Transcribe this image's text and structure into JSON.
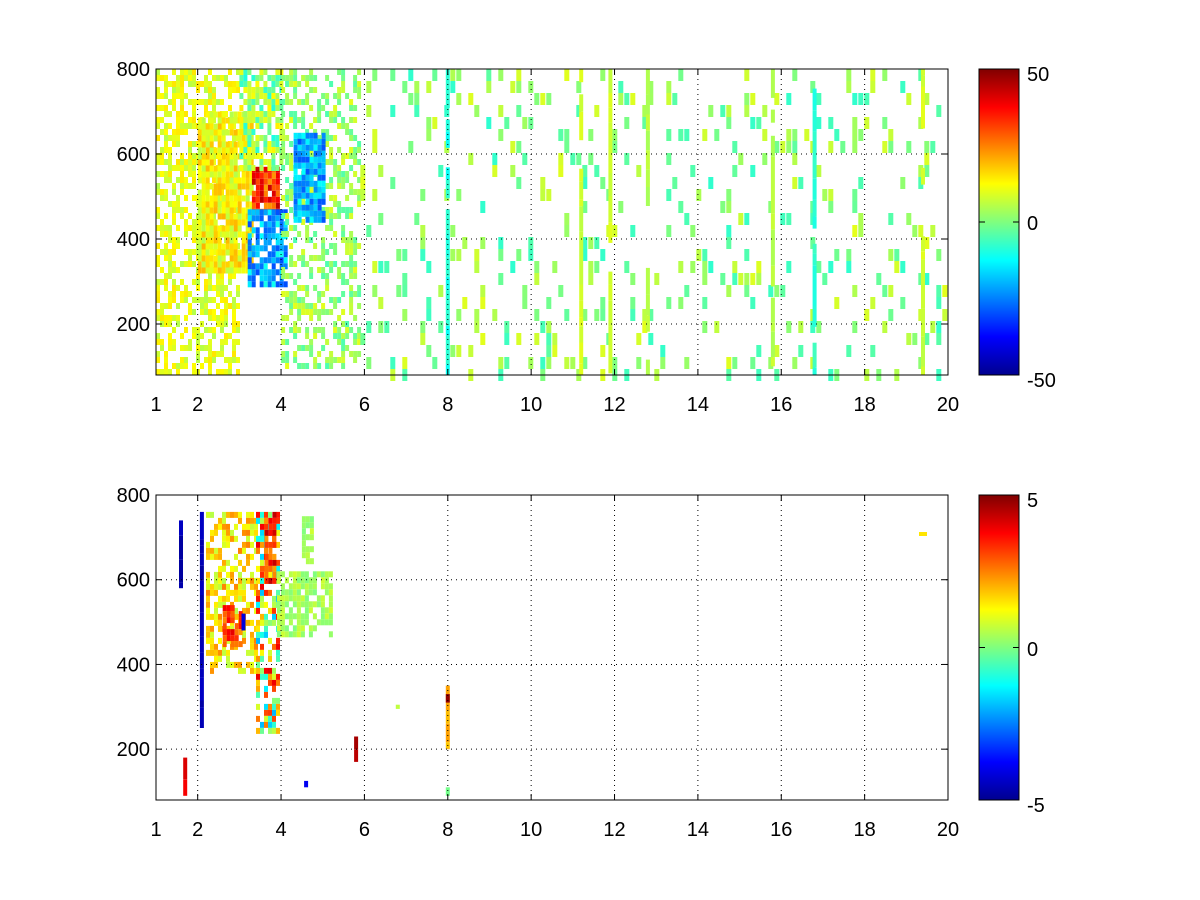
{
  "chart_data": [
    {
      "type": "heatmap",
      "title": "",
      "xlabel": "",
      "ylabel": "",
      "xlim": [
        1,
        20
      ],
      "ylim": [
        80,
        800
      ],
      "xticks": [
        1,
        2,
        4,
        6,
        8,
        10,
        12,
        14,
        16,
        18,
        20
      ],
      "yticks": [
        200,
        400,
        600,
        800
      ],
      "grid": true,
      "colormap": "jet",
      "colorbar": {
        "range": [
          -50,
          50
        ],
        "ticks": [
          -50,
          0,
          50
        ]
      },
      "regions": [
        {
          "x": [
            1.0,
            3.0
          ],
          "y": [
            80,
            800
          ],
          "density": 0.55,
          "v": [
            5,
            15
          ]
        },
        {
          "x": [
            2.0,
            3.3
          ],
          "y": [
            330,
            700
          ],
          "density": 0.85,
          "v": [
            5,
            20
          ]
        },
        {
          "x": [
            3.3,
            3.9
          ],
          "y": [
            460,
            570
          ],
          "density": 0.95,
          "v": [
            20,
            45
          ]
        },
        {
          "x": [
            3.2,
            4.1
          ],
          "y": [
            300,
            470
          ],
          "density": 0.8,
          "v": [
            -30,
            -10
          ]
        },
        {
          "x": [
            3.0,
            4.0
          ],
          "y": [
            570,
            800
          ],
          "density": 0.7,
          "v": [
            -10,
            15
          ]
        },
        {
          "x": [
            4.0,
            5.9
          ],
          "y": [
            100,
            800
          ],
          "density": 0.45,
          "v": [
            -5,
            10
          ]
        },
        {
          "x": [
            4.3,
            5.0
          ],
          "y": [
            450,
            650
          ],
          "density": 0.9,
          "v": [
            -30,
            -12
          ]
        },
        {
          "x": [
            5.9,
            20.0
          ],
          "y": [
            80,
            800
          ],
          "density": 0.16,
          "v": [
            -8,
            10
          ]
        }
      ],
      "columns": [
        {
          "x": 8.0,
          "v": -10
        },
        {
          "x": 11.9,
          "v": 8
        },
        {
          "x": 11.2,
          "v": 8
        },
        {
          "x": 12.8,
          "v": 5
        },
        {
          "x": 15.8,
          "v": 6
        },
        {
          "x": 19.4,
          "v": 8
        },
        {
          "x": 16.8,
          "v": -8
        }
      ]
    },
    {
      "type": "heatmap",
      "title": "",
      "xlabel": "",
      "ylabel": "",
      "xlim": [
        1,
        20
      ],
      "ylim": [
        80,
        800
      ],
      "xticks": [
        1,
        2,
        4,
        6,
        8,
        10,
        12,
        14,
        16,
        18,
        20
      ],
      "yticks": [
        200,
        400,
        600,
        800
      ],
      "grid": true,
      "colormap": "jet",
      "colorbar": {
        "range": [
          -5,
          5
        ],
        "ticks": [
          -5,
          0,
          5
        ]
      },
      "regions": [
        {
          "x": [
            2.2,
            3.4
          ],
          "y": [
            380,
            760
          ],
          "density": 0.55,
          "v": [
            0.5,
            2.5
          ]
        },
        {
          "x": [
            2.6,
            3.0
          ],
          "y": [
            450,
            540
          ],
          "density": 0.75,
          "v": [
            2,
            4
          ]
        },
        {
          "x": [
            3.4,
            3.9
          ],
          "y": [
            240,
            760
          ],
          "density": 0.65,
          "v": [
            -2,
            4
          ]
        },
        {
          "x": [
            3.6,
            3.8
          ],
          "y": [
            600,
            760
          ],
          "density": 0.8,
          "v": [
            2,
            4.5
          ]
        },
        {
          "x": [
            3.9,
            5.2
          ],
          "y": [
            470,
            620
          ],
          "density": 0.75,
          "v": [
            0,
            0.8
          ]
        },
        {
          "x": [
            4.5,
            4.7
          ],
          "y": [
            640,
            750
          ],
          "density": 0.7,
          "v": [
            0,
            0.8
          ]
        }
      ],
      "columns": [
        {
          "x": 2.1,
          "y": [
            250,
            760
          ],
          "v": -4.5
        },
        {
          "x": 1.6,
          "y": [
            580,
            740
          ],
          "v": -4.5
        },
        {
          "x": 1.7,
          "y": [
            90,
            180
          ],
          "v": 4
        },
        {
          "x": 3.1,
          "y": [
            480,
            520
          ],
          "v": -4
        },
        {
          "x": 5.8,
          "y": [
            170,
            230
          ],
          "v": 4.5
        },
        {
          "x": 8.0,
          "y": [
            200,
            350
          ],
          "v": 2
        },
        {
          "x": 8.0,
          "y": [
            310,
            330
          ],
          "v": 5
        },
        {
          "x": 8.0,
          "y": [
            90,
            110
          ],
          "v": 0
        },
        {
          "x": 6.8,
          "y": [
            295,
            305
          ],
          "v": 0.5
        },
        {
          "x": 4.6,
          "y": [
            110,
            125
          ],
          "v": -4
        }
      ],
      "dots": [
        {
          "x": 19.4,
          "y": 708,
          "v": 1.5
        }
      ]
    }
  ]
}
